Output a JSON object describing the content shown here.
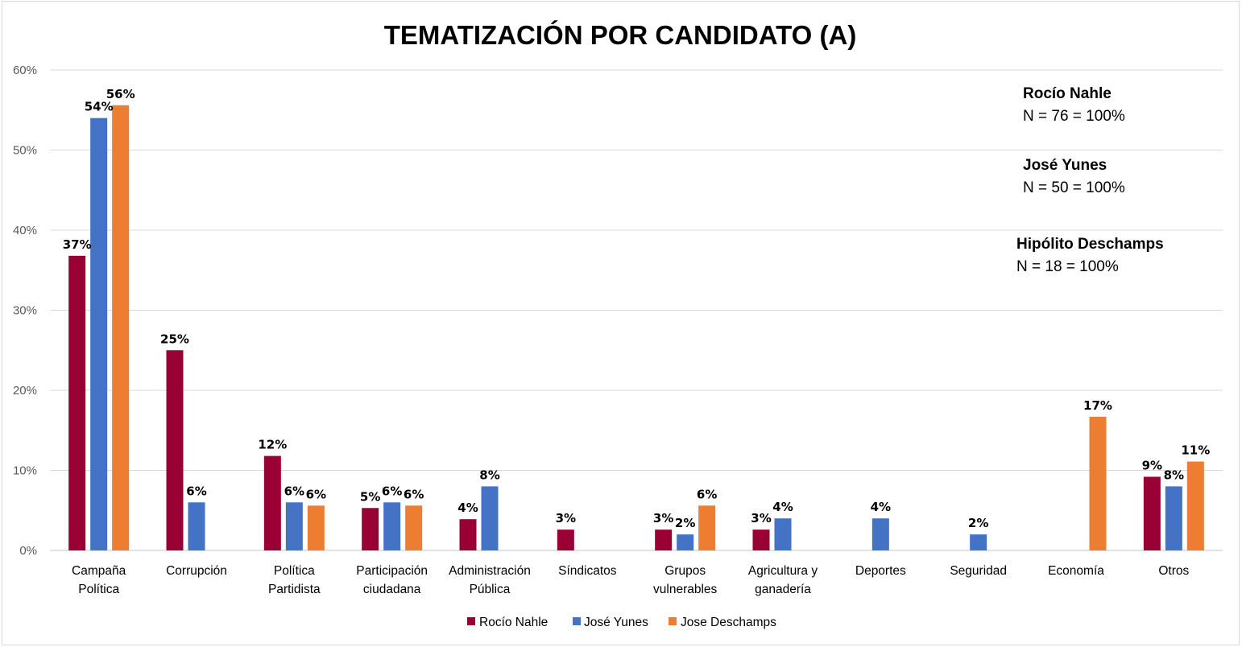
{
  "chart_data": {
    "type": "bar",
    "title": "TEMATIZACIÓN POR CANDIDATO (A)",
    "xlabel": "",
    "ylabel": "",
    "ylim": [
      0,
      60
    ],
    "yticks": [
      "0%",
      "10%",
      "20%",
      "30%",
      "40%",
      "50%",
      "60%"
    ],
    "ytick_values": [
      0,
      10,
      20,
      30,
      40,
      50,
      60
    ],
    "grid": true,
    "legend_position": "bottom",
    "categories": [
      [
        "Campaña",
        "Política"
      ],
      [
        "Corrupción"
      ],
      [
        "Política",
        "Partidista"
      ],
      [
        "Participación",
        "ciudadana"
      ],
      [
        "Administración",
        "Pública"
      ],
      [
        "Síndicatos"
      ],
      [
        "Grupos",
        "vulnerables"
      ],
      [
        "Agricultura y",
        "ganadería"
      ],
      [
        "Deportes"
      ],
      [
        "Seguridad"
      ],
      [
        "Economía"
      ],
      [
        "Otros"
      ]
    ],
    "series": [
      {
        "name": "Rocío Nahle",
        "color": "#990033",
        "values": [
          36.8,
          25.0,
          11.8,
          5.3,
          3.9,
          2.6,
          2.6,
          2.6,
          null,
          null,
          null,
          9.2
        ],
        "labels": [
          "37%",
          "25%",
          "12%",
          "5%",
          "4%",
          "3%",
          "3%",
          "3%",
          null,
          null,
          null,
          "9%"
        ]
      },
      {
        "name": "José Yunes",
        "color": "#4472c4",
        "values": [
          54.0,
          6.0,
          6.0,
          6.0,
          8.0,
          null,
          2.0,
          4.0,
          4.0,
          2.0,
          null,
          8.0
        ],
        "labels": [
          "54%",
          "6%",
          "6%",
          "6%",
          "8%",
          null,
          "2%",
          "4%",
          "4%",
          "2%",
          null,
          "8%"
        ]
      },
      {
        "name": "Jose Deschamps",
        "color": "#ed7d31",
        "values": [
          55.6,
          null,
          5.6,
          5.6,
          null,
          null,
          5.6,
          null,
          null,
          null,
          16.7,
          11.1
        ],
        "labels": [
          "56%",
          null,
          "6%",
          "6%",
          null,
          null,
          "6%",
          null,
          null,
          null,
          "17%",
          "11%"
        ]
      }
    ],
    "annotations": [
      {
        "name": "Rocío Nahle",
        "n": "N = 76 = 100%"
      },
      {
        "name": "José Yunes",
        "n": "N = 50 = 100%"
      },
      {
        "name": "Hipólito Deschamps",
        "n": "N = 18 = 100%"
      }
    ]
  }
}
